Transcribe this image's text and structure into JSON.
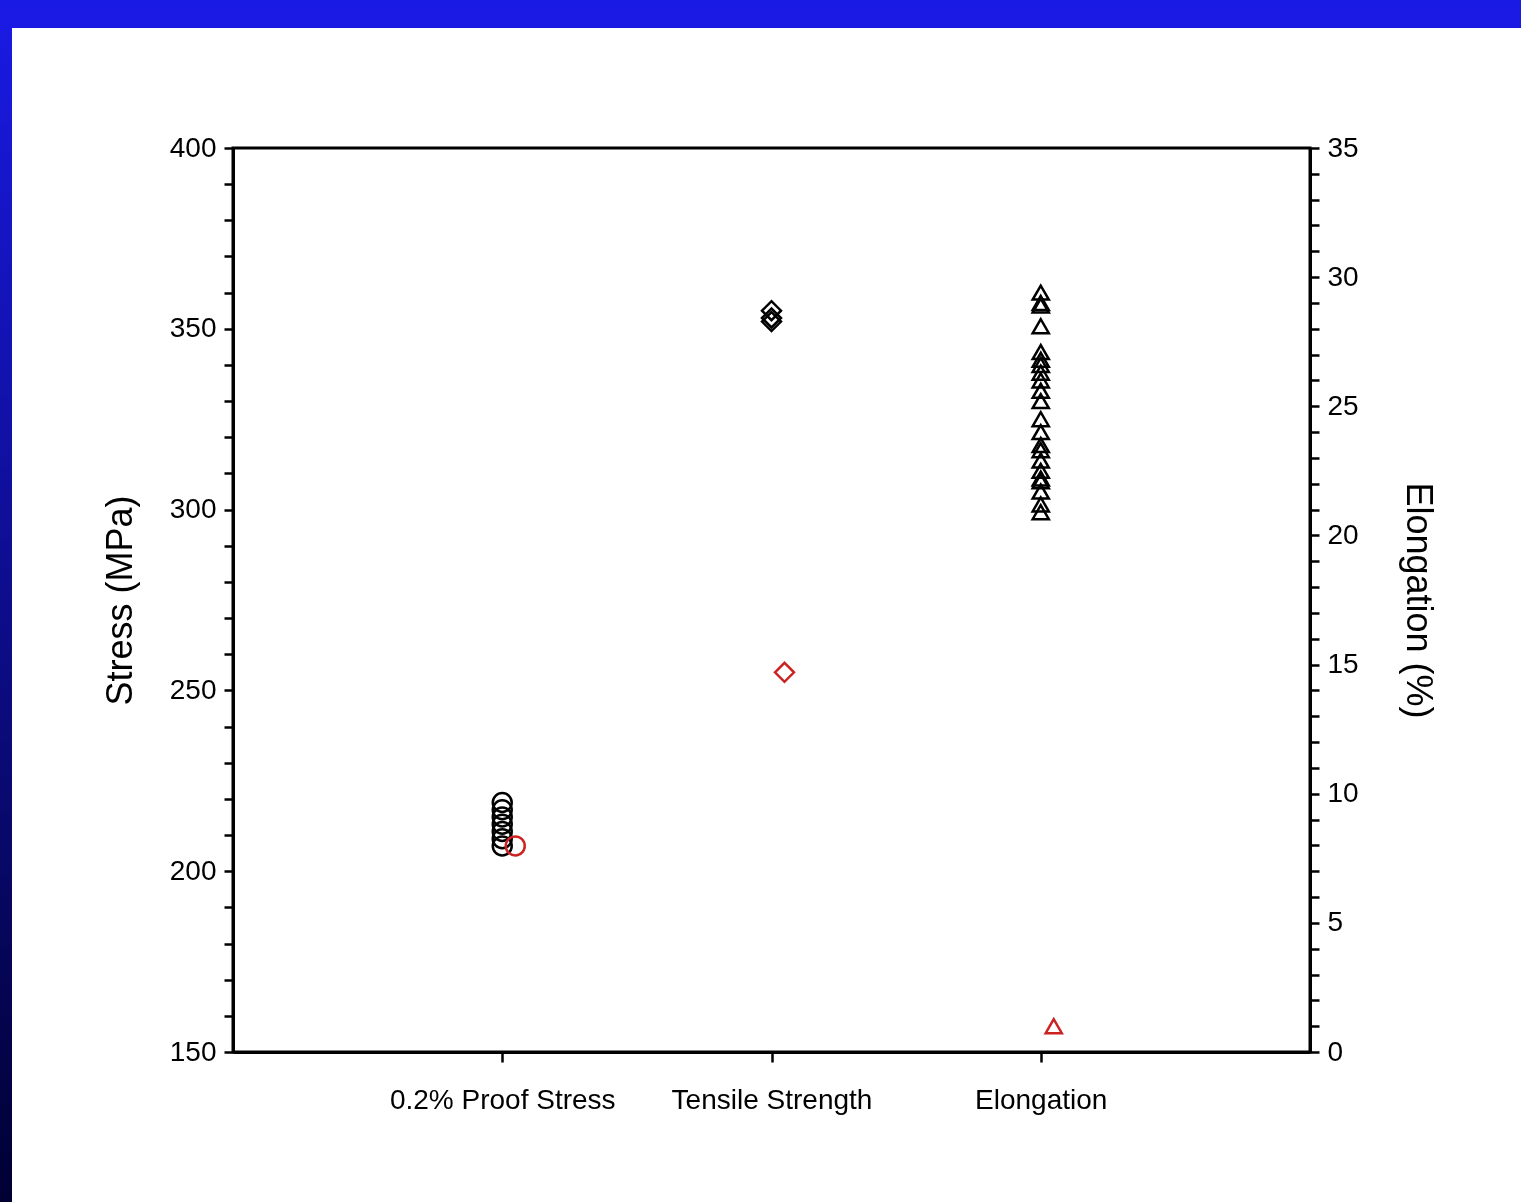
{
  "chart_data": {
    "type": "scatter",
    "categories": [
      "0.2% Proof Stress",
      "Tensile Strength",
      "Elongation"
    ],
    "ylabel": "Stress (MPa)",
    "y2label": "Elongation (%)",
    "ylim": [
      150,
      400
    ],
    "yticks": [
      150,
      {
        "value": 160,
        "label": null
      },
      {
        "value": 170,
        "label": null
      },
      {
        "value": 180,
        "label": null
      },
      {
        "value": 190,
        "label": null
      },
      200,
      {
        "value": 210,
        "label": null
      },
      {
        "value": 220,
        "label": null
      },
      {
        "value": 230,
        "label": null
      },
      {
        "value": 240,
        "label": null
      },
      250,
      {
        "value": 260,
        "label": null
      },
      {
        "value": 270,
        "label": null
      },
      {
        "value": 280,
        "label": null
      },
      {
        "value": 290,
        "label": null
      },
      300,
      {
        "value": 310,
        "label": null
      },
      {
        "value": 320,
        "label": null
      },
      {
        "value": 330,
        "label": null
      },
      {
        "value": 340,
        "label": null
      },
      350,
      {
        "value": 360,
        "label": null
      },
      {
        "value": 370,
        "label": null
      },
      {
        "value": 380,
        "label": null
      },
      {
        "value": 390,
        "label": null
      },
      400
    ],
    "y2lim": [
      0,
      35
    ],
    "y2ticks": [
      0,
      {
        "value": 1,
        "label": null
      },
      {
        "value": 2,
        "label": null
      },
      {
        "value": 3,
        "label": null
      },
      {
        "value": 4,
        "label": null
      },
      5,
      {
        "value": 6,
        "label": null
      },
      {
        "value": 7,
        "label": null
      },
      {
        "value": 8,
        "label": null
      },
      {
        "value": 9,
        "label": null
      },
      10,
      {
        "value": 11,
        "label": null
      },
      {
        "value": 12,
        "label": null
      },
      {
        "value": 13,
        "label": null
      },
      {
        "value": 14,
        "label": null
      },
      15,
      {
        "value": 16,
        "label": null
      },
      {
        "value": 17,
        "label": null
      },
      {
        "value": 18,
        "label": null
      },
      {
        "value": 19,
        "label": null
      },
      20,
      {
        "value": 21,
        "label": null
      },
      {
        "value": 22,
        "label": null
      },
      {
        "value": 23,
        "label": null
      },
      {
        "value": 24,
        "label": null
      },
      25,
      {
        "value": 26,
        "label": null
      },
      {
        "value": 27,
        "label": null
      },
      {
        "value": 28,
        "label": null
      },
      {
        "value": 29,
        "label": null
      },
      30,
      {
        "value": 31,
        "label": null
      },
      {
        "value": 32,
        "label": null
      },
      {
        "value": 33,
        "label": null
      },
      {
        "value": 34,
        "label": null
      },
      35
    ],
    "grid": false,
    "series": [
      {
        "type": "scatter",
        "marker": "circle",
        "color": "#000000",
        "x": [
          "0.2% Proof Stress",
          "0.2% Proof Stress",
          "0.2% Proof Stress",
          "0.2% Proof Stress",
          "0.2% Proof Stress",
          "0.2% Proof Stress",
          "0.2% Proof Stress"
        ],
        "values": [
          219,
          217,
          215,
          213,
          211,
          209,
          207
        ]
      },
      {
        "type": "scatter",
        "marker": "circle",
        "color": "#cc2222",
        "x": [
          "0.2% Proof Stress"
        ],
        "values": [
          207
        ]
      },
      {
        "type": "scatter",
        "marker": "diamond",
        "color": "#000000",
        "x": [
          "Tensile Strength",
          "Tensile Strength",
          "Tensile Strength"
        ],
        "values": [
          355,
          353,
          352
        ]
      },
      {
        "type": "scatter",
        "marker": "diamond",
        "color": "#cc2222",
        "x": [
          "Tensile Strength"
        ],
        "values": [
          255
        ]
      },
      {
        "type": "scatter",
        "marker": "triangle",
        "axis": "y2",
        "color": "#000000",
        "x": [
          "Elongation",
          "Elongation",
          "Elongation",
          "Elongation",
          "Elongation",
          "Elongation",
          "Elongation",
          "Elongation",
          "Elongation",
          "Elongation",
          "Elongation",
          "Elongation",
          "Elongation",
          "Elongation",
          "Elongation",
          "Elongation",
          "Elongation",
          "Elongation",
          "Elongation",
          "Elongation",
          "Elongation",
          "Elongation"
        ],
        "values": [
          29.4,
          29.0,
          28.9,
          28.1,
          27.1,
          26.8,
          26.6,
          26.3,
          26.0,
          25.6,
          25.2,
          24.5,
          24.0,
          23.5,
          23.3,
          22.9,
          22.5,
          22.2,
          22.1,
          21.7,
          21.2,
          20.9
        ]
      },
      {
        "type": "scatter",
        "marker": "triangle",
        "axis": "y2",
        "color": "#cc2222",
        "x": [
          "Elongation"
        ],
        "values": [
          1.0
        ]
      }
    ]
  }
}
